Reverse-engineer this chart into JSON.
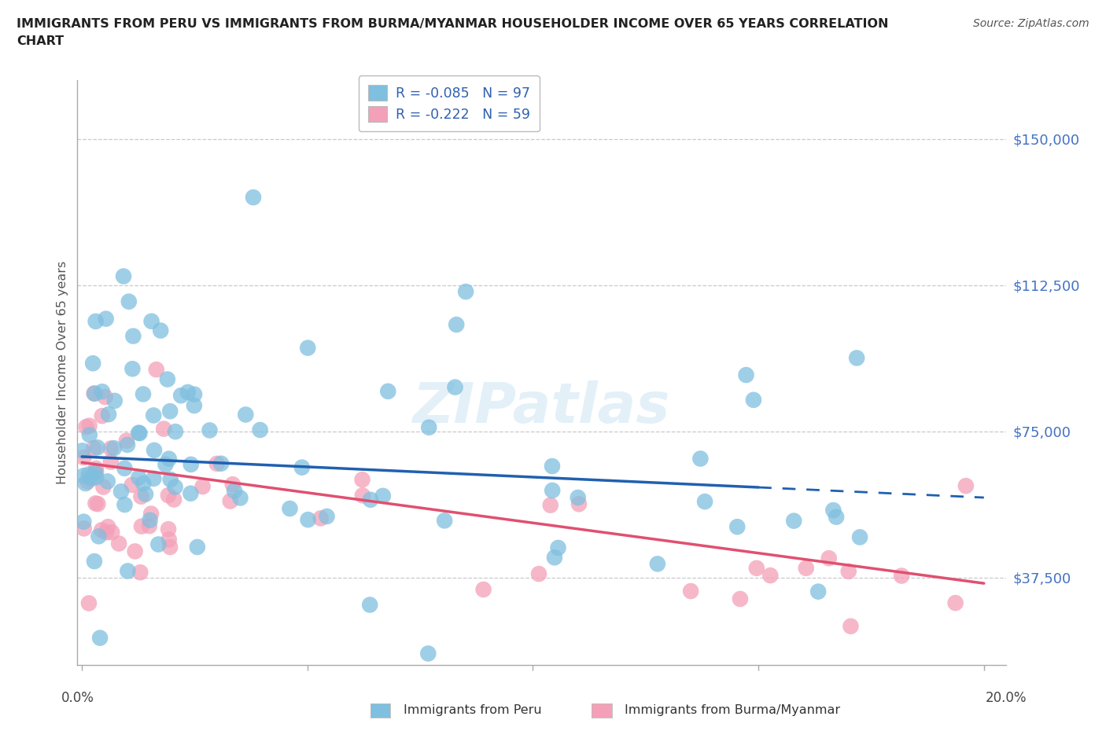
{
  "title": "IMMIGRANTS FROM PERU VS IMMIGRANTS FROM BURMA/MYANMAR HOUSEHOLDER INCOME OVER 65 YEARS CORRELATION\nCHART",
  "source": "Source: ZipAtlas.com",
  "ylabel": "Householder Income Over 65 years",
  "ytick_labels": [
    "$37,500",
    "$75,000",
    "$112,500",
    "$150,000"
  ],
  "ytick_values": [
    37500,
    75000,
    112500,
    150000
  ],
  "ymin": 15000,
  "ymax": 165000,
  "xmin": -0.001,
  "xmax": 0.205,
  "peru_color": "#7fbfdf",
  "burma_color": "#f4a0b8",
  "peru_line_color": "#2060b0",
  "burma_line_color": "#e05070",
  "watermark": "ZIPatlas",
  "legend_peru_r": "-0.085",
  "legend_peru_n": "97",
  "legend_burma_r": "-0.222",
  "legend_burma_n": "59"
}
